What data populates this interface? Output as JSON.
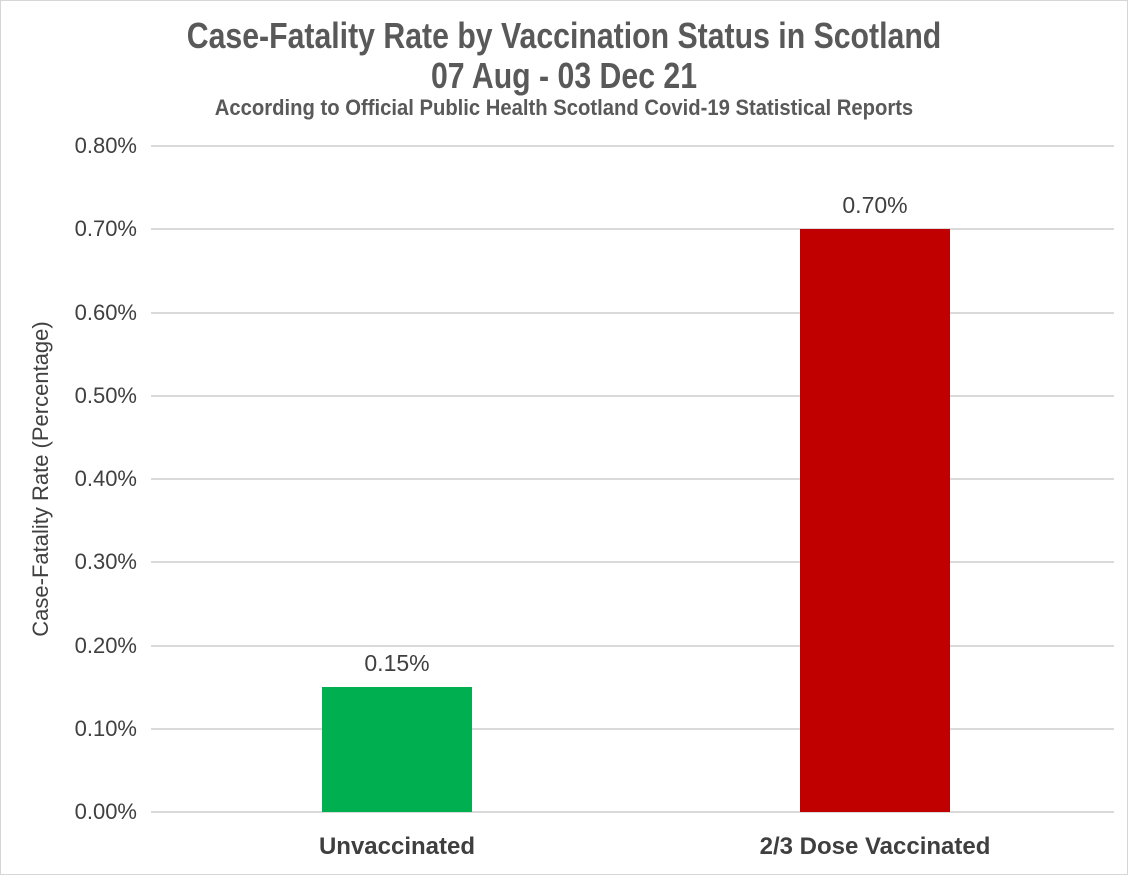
{
  "title": {
    "line1": "Case-Fatality Rate by Vaccination Status in Scotland",
    "line2": "07 Aug - 03 Dec 21",
    "subtitle": "According to Official Public Health Scotland Covid-19 Statistical Reports"
  },
  "chart_data": {
    "type": "bar",
    "title": "Case-Fatality Rate by Vaccination Status in Scotland 07 Aug - 03 Dec 21",
    "subtitle": "According to Official Public Health Scotland Covid-19 Statistical Reports",
    "categories": [
      "Unvaccinated",
      "2/3 Dose Vaccinated"
    ],
    "values": [
      0.15,
      0.7
    ],
    "value_labels": [
      "0.15%",
      "0.70%"
    ],
    "bar_colors": [
      "#00B050",
      "#C00000"
    ],
    "xlabel": "",
    "ylabel": "Case-Fatality Rate (Percentage)",
    "ylim": [
      0,
      0.8
    ],
    "ytick_step": 0.1,
    "ytick_labels": [
      "0.00%",
      "0.10%",
      "0.20%",
      "0.30%",
      "0.40%",
      "0.50%",
      "0.60%",
      "0.70%",
      "0.80%"
    ],
    "grid": true,
    "legend": false
  },
  "colors": {
    "title_text": "#595959",
    "axis_text": "#404040",
    "gridline": "#DADADA",
    "frame_border": "#D6D6D6",
    "background": "#FFFFFF"
  }
}
